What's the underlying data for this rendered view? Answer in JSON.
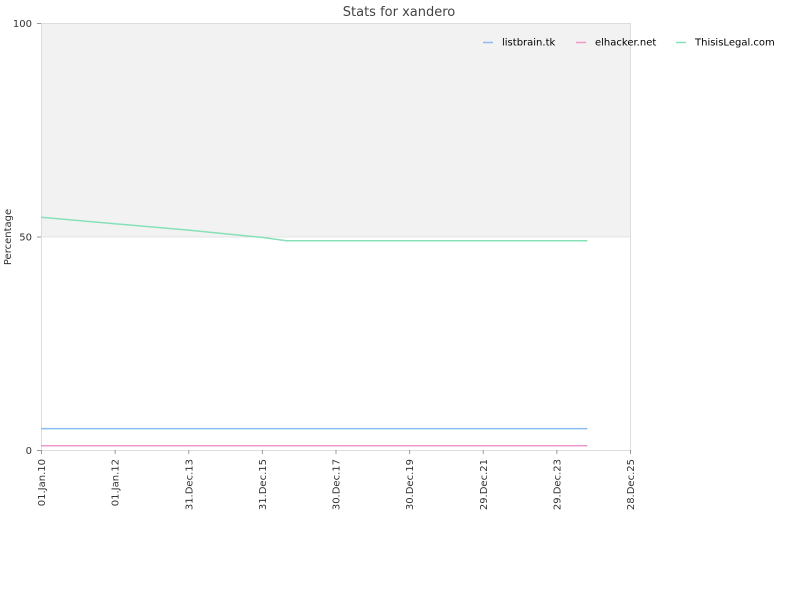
{
  "chart_data": {
    "type": "line",
    "title": "Stats for xandero",
    "xlabel": "",
    "ylabel": "Percentage",
    "ylim": [
      0,
      100
    ],
    "xlim": [
      "2010-01-01",
      "2025-12-28"
    ],
    "yticks": [
      0,
      50,
      100
    ],
    "xticks": [
      "01.Jan.10",
      "01.Jan.12",
      "31.Dec.13",
      "31.Dec.15",
      "30.Dec.17",
      "30.Dec.19",
      "29.Dec.21",
      "29.Dec.23",
      "28.Dec.25"
    ],
    "xtick_dates": [
      "2010-01-01",
      "2012-01-01",
      "2013-12-31",
      "2015-12-31",
      "2017-12-30",
      "2019-12-30",
      "2021-12-29",
      "2023-12-29",
      "2025-12-28"
    ],
    "shaded_band": [
      50,
      100
    ],
    "legend_position": "top-right",
    "grid": false,
    "series": [
      {
        "name": "listbrain.tk",
        "color": "#88bbee",
        "points": [
          [
            "2010-01-01",
            5
          ],
          [
            "2024-11-01",
            5
          ]
        ]
      },
      {
        "name": "elhacker.net",
        "color": "#ee99cc",
        "points": [
          [
            "2010-01-01",
            1
          ],
          [
            "2024-11-01",
            1
          ]
        ]
      },
      {
        "name": "ThisisLegal.com",
        "color": "#88e0b8",
        "points": [
          [
            "2010-01-01",
            54.5
          ],
          [
            "2012-01-01",
            53
          ],
          [
            "2014-01-01",
            51.5
          ],
          [
            "2016-01-01",
            49.8
          ],
          [
            "2016-09-01",
            49
          ],
          [
            "2018-01-01",
            49
          ],
          [
            "2020-01-01",
            49
          ],
          [
            "2022-01-01",
            49
          ],
          [
            "2024-11-01",
            49
          ]
        ]
      }
    ]
  }
}
